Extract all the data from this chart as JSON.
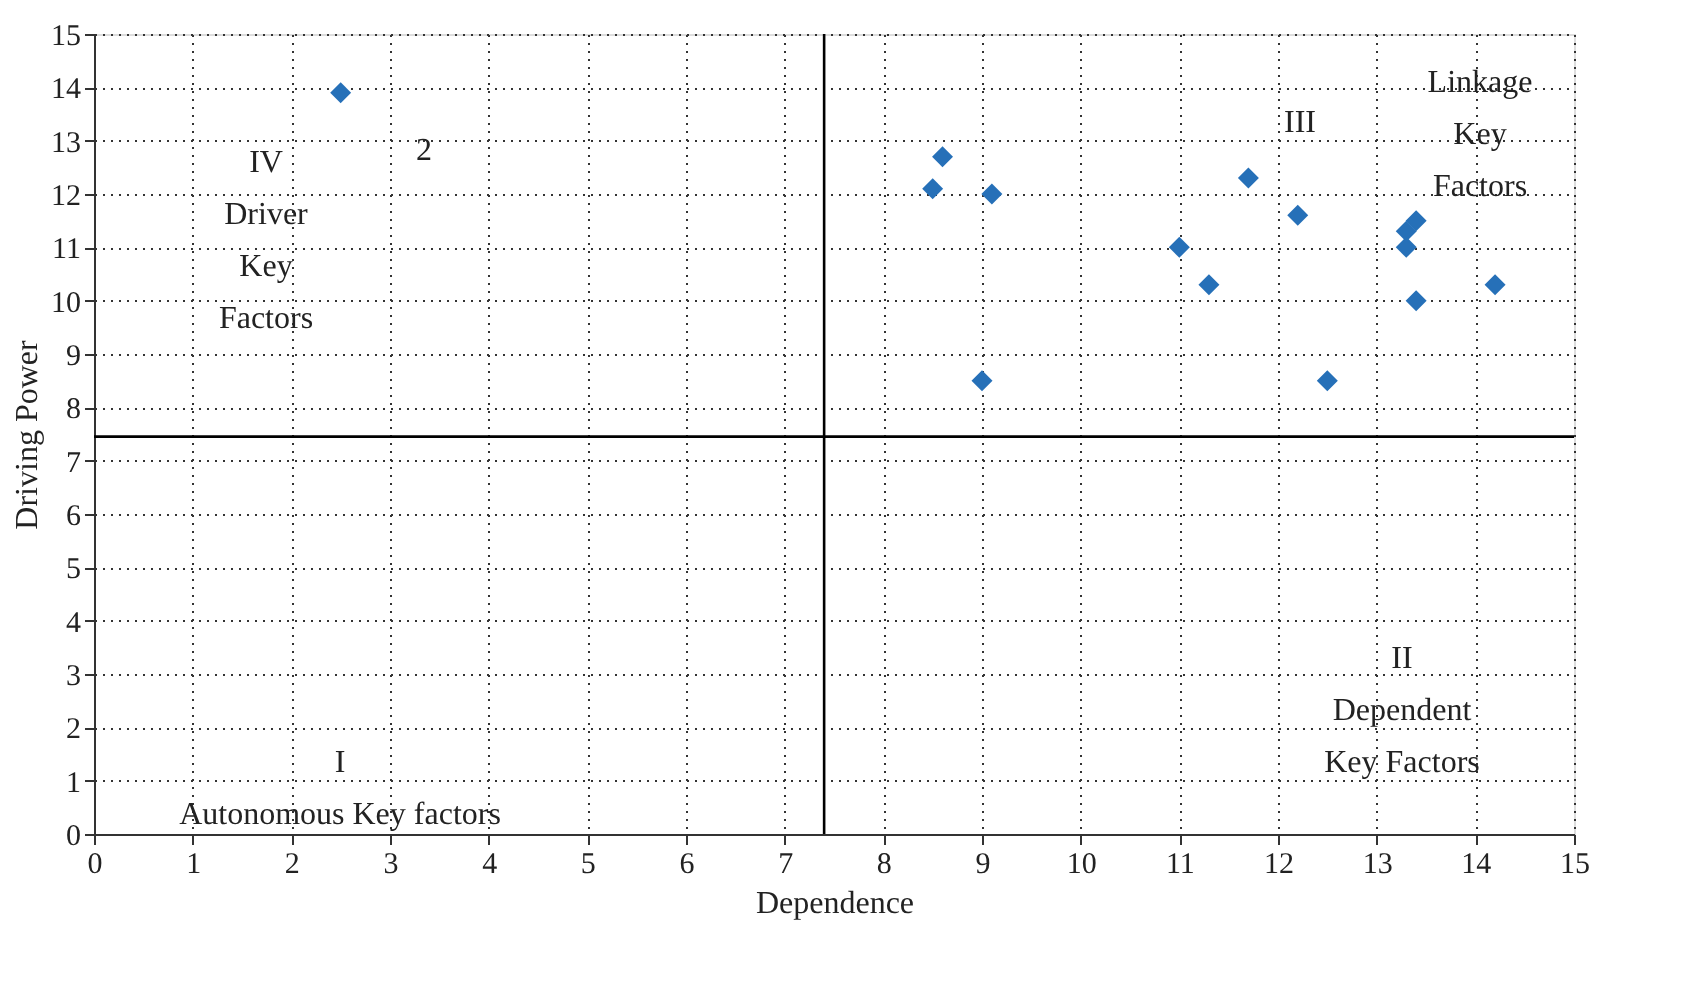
{
  "chart_data": {
    "type": "scatter",
    "xlabel": "Dependence",
    "ylabel": "Driving Power",
    "series": [
      {
        "color": "#2670b8",
        "x": [
          2.5,
          8.6,
          8.5,
          9.1,
          11.7,
          12.2,
          11.0,
          11.3,
          13.4,
          13.3,
          13.3,
          13.4,
          14.2,
          9.0,
          12.5
        ],
        "values": [
          13.9,
          12.7,
          12.1,
          12.0,
          12.3,
          11.6,
          11.0,
          10.3,
          11.5,
          11.3,
          11.0,
          10.0,
          10.3,
          8.5,
          8.5
        ]
      }
    ],
    "marker": "diamond",
    "xlim": [
      0,
      15
    ],
    "ylim": [
      0,
      15
    ],
    "xticks": [
      0,
      1,
      2,
      3,
      4,
      5,
      6,
      7,
      8,
      9,
      10,
      11,
      12,
      13,
      14,
      15
    ],
    "yticks": [
      0,
      1,
      2,
      3,
      4,
      5,
      6,
      7,
      8,
      9,
      10,
      11,
      12,
      13,
      14,
      15
    ],
    "grid": true,
    "ref_lines": [
      {
        "axis": "x",
        "value": 7.4,
        "color": "#000000"
      },
      {
        "axis": "y",
        "value": 7.45,
        "color": "#000000"
      }
    ],
    "annotations": [
      "IV\nDriver\nKey\nFactors",
      "2",
      "III",
      "Linkage\nKey\nFactors",
      "II\nDependent\nKey Factors",
      "I\nAutonomous Key factors"
    ]
  }
}
